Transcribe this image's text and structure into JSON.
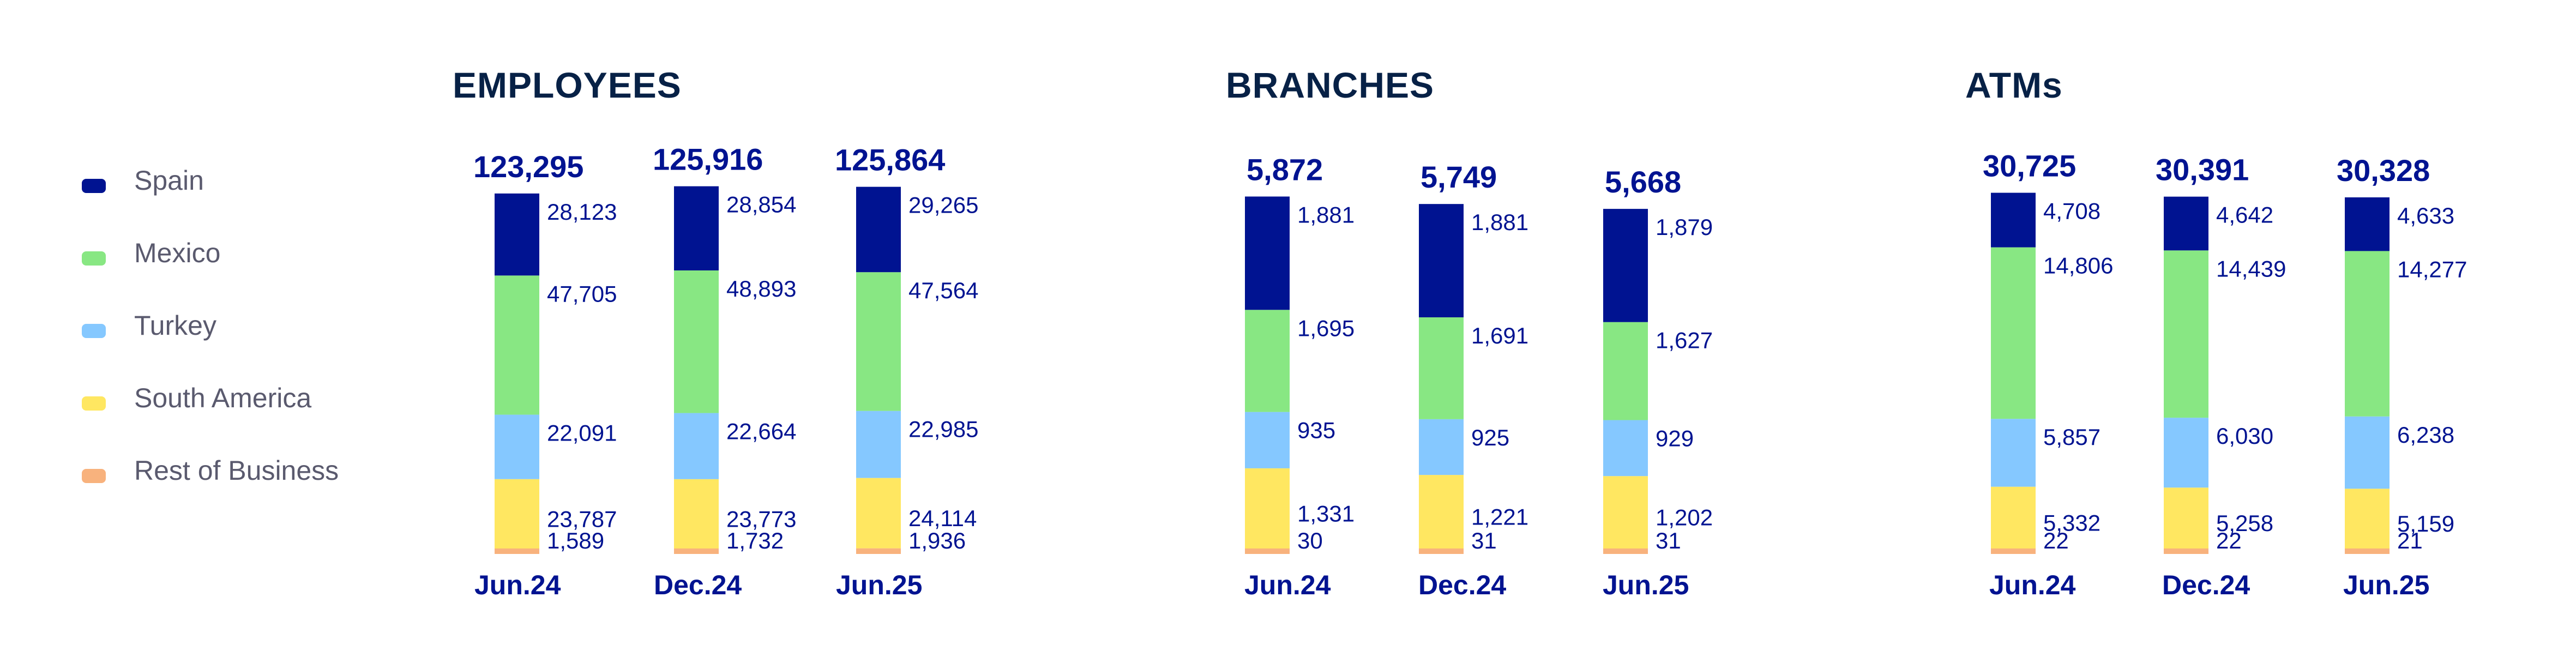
{
  "legend": [
    {
      "label": "Spain",
      "color": "#001391"
    },
    {
      "label": "Mexico",
      "color": "#88E783"
    },
    {
      "label": "Turkey",
      "color": "#85C8FF"
    },
    {
      "label": "South America",
      "color": "#FFE761"
    },
    {
      "label": "Rest of Business",
      "color": "#F8B27D"
    }
  ],
  "colors": {
    "title": "#072146",
    "labels": "#001391"
  },
  "chart_data": [
    {
      "type": "bar",
      "stacked": true,
      "title": "EMPLOYEES",
      "categories": [
        "Jun.24",
        "Dec.24",
        "Jun.25"
      ],
      "totals": [
        "123,295",
        "125,916",
        "125,864"
      ],
      "series": [
        {
          "name": "Spain",
          "values": [
            28123,
            28854,
            29265
          ],
          "labels": [
            "28,123",
            "28,854",
            "29,265"
          ]
        },
        {
          "name": "Mexico",
          "values": [
            47705,
            48893,
            47564
          ],
          "labels": [
            "47,705",
            "48,893",
            "47,564"
          ]
        },
        {
          "name": "Turkey",
          "values": [
            22091,
            22664,
            22985
          ],
          "labels": [
            "22,091",
            "22,664",
            "22,985"
          ]
        },
        {
          "name": "South America",
          "values": [
            23787,
            23773,
            24114
          ],
          "labels": [
            "23,787",
            "23,773",
            "24,114"
          ]
        },
        {
          "name": "Rest of Business",
          "values": [
            1589,
            1732,
            1936
          ],
          "labels": [
            "1,589",
            "1,732",
            "1,936"
          ]
        }
      ]
    },
    {
      "type": "bar",
      "stacked": true,
      "title": "BRANCHES",
      "categories": [
        "Jun.24",
        "Dec.24",
        "Jun.25"
      ],
      "totals": [
        "5,872",
        "5,749",
        "5,668"
      ],
      "series": [
        {
          "name": "Spain",
          "values": [
            1881,
            1881,
            1879
          ],
          "labels": [
            "1,881",
            "1,881",
            "1,879"
          ]
        },
        {
          "name": "Mexico",
          "values": [
            1695,
            1691,
            1627
          ],
          "labels": [
            "1,695",
            "1,691",
            "1,627"
          ]
        },
        {
          "name": "Turkey",
          "values": [
            935,
            925,
            929
          ],
          "labels": [
            "935",
            "925",
            "929"
          ]
        },
        {
          "name": "South America",
          "values": [
            1331,
            1221,
            1202
          ],
          "labels": [
            "1,331",
            "1,221",
            "1,202"
          ]
        },
        {
          "name": "Rest of Business",
          "values": [
            30,
            31,
            31
          ],
          "labels": [
            "30",
            "31",
            "31"
          ]
        }
      ]
    },
    {
      "type": "bar",
      "stacked": true,
      "title": "ATMs",
      "categories": [
        "Jun.24",
        "Dec.24",
        "Jun.25"
      ],
      "totals": [
        "30,725",
        "30,391",
        "30,328"
      ],
      "series": [
        {
          "name": "Spain",
          "values": [
            4708,
            4642,
            4633
          ],
          "labels": [
            "4,708",
            "4,642",
            "4,633"
          ]
        },
        {
          "name": "Mexico",
          "values": [
            14806,
            14439,
            14277
          ],
          "labels": [
            "14,806",
            "14,439",
            "14,277"
          ]
        },
        {
          "name": "Turkey",
          "values": [
            5857,
            6030,
            6238
          ],
          "labels": [
            "5,857",
            "6,030",
            "6,238"
          ]
        },
        {
          "name": "South America",
          "values": [
            5332,
            5258,
            5159
          ],
          "labels": [
            "5,332",
            "5,258",
            "5,159"
          ]
        },
        {
          "name": "Rest of Business",
          "values": [
            22,
            22,
            21
          ],
          "labels": [
            "22",
            "22",
            "21"
          ]
        }
      ]
    }
  ]
}
